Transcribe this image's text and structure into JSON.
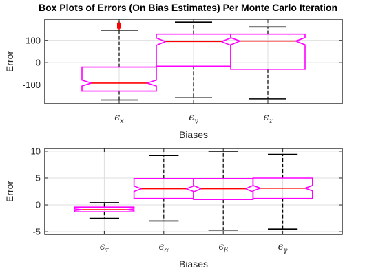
{
  "title": "Box Plots of Errors (On Bias Estimates) Per Monte Carlo Iteration",
  "colors": {
    "box": "#ff00ff",
    "median": "#ff0000",
    "whisker": "#000000",
    "outlier": "#ff0000",
    "grid": "#dcdcdc",
    "axis": "#262626"
  },
  "chart_data": [
    {
      "type": "box",
      "notched": true,
      "xlabel": "Biases",
      "ylabel": "Error",
      "ylim": [
        -185,
        195
      ],
      "yticks": [
        -100,
        0,
        100
      ],
      "yticklabels": [
        "-100",
        "0",
        "100"
      ],
      "grid": true,
      "categories": [
        {
          "symbol": "ϵ",
          "sub": "x"
        },
        {
          "symbol": "ϵ",
          "sub": "y"
        },
        {
          "symbol": "ϵ",
          "sub": "z"
        }
      ],
      "boxes": [
        {
          "whisker_low": -168,
          "q1": -128,
          "median": -92,
          "q3": -20,
          "whisker_high": 146,
          "notch_low": -105,
          "notch_high": -79,
          "outliers": [
            155,
            158,
            160,
            162,
            164,
            166,
            168,
            170,
            172,
            175,
            178
          ]
        },
        {
          "whisker_low": -158,
          "q1": -16,
          "median": 95,
          "q3": 128,
          "whisker_high": 182,
          "notch_low": 78,
          "notch_high": 110,
          "outliers": []
        },
        {
          "whisker_low": -163,
          "q1": -30,
          "median": 97,
          "q3": 128,
          "whisker_high": 160,
          "notch_low": 80,
          "notch_high": 112,
          "outliers": []
        }
      ]
    },
    {
      "type": "box",
      "notched": true,
      "xlabel": "Biases",
      "ylabel": "Error",
      "ylim": [
        -5.5,
        10.5
      ],
      "yticks": [
        -5,
        0,
        5,
        10
      ],
      "yticklabels": [
        "-5",
        "0",
        "5",
        "10"
      ],
      "grid": true,
      "categories": [
        {
          "symbol": "ϵ",
          "sub": "τ"
        },
        {
          "symbol": "ϵ",
          "sub": "α"
        },
        {
          "symbol": "ϵ",
          "sub": "β"
        },
        {
          "symbol": "ϵ",
          "sub": "γ"
        }
      ],
      "boxes": [
        {
          "whisker_low": -2.5,
          "q1": -1.3,
          "median": -0.9,
          "q3": -0.4,
          "whisker_high": 0.4,
          "notch_low": -1.05,
          "notch_high": -0.75,
          "outliers": []
        },
        {
          "whisker_low": -3.0,
          "q1": 1.2,
          "median": 3.0,
          "q3": 4.9,
          "whisker_high": 9.2,
          "notch_low": 2.5,
          "notch_high": 3.5,
          "outliers": []
        },
        {
          "whisker_low": -4.7,
          "q1": 1.0,
          "median": 3.0,
          "q3": 4.9,
          "whisker_high": 10.0,
          "notch_low": 2.4,
          "notch_high": 3.6,
          "outliers": []
        },
        {
          "whisker_low": -4.5,
          "q1": 1.2,
          "median": 3.1,
          "q3": 5.0,
          "whisker_high": 9.4,
          "notch_low": 2.6,
          "notch_high": 3.6,
          "outliers": []
        }
      ]
    }
  ]
}
